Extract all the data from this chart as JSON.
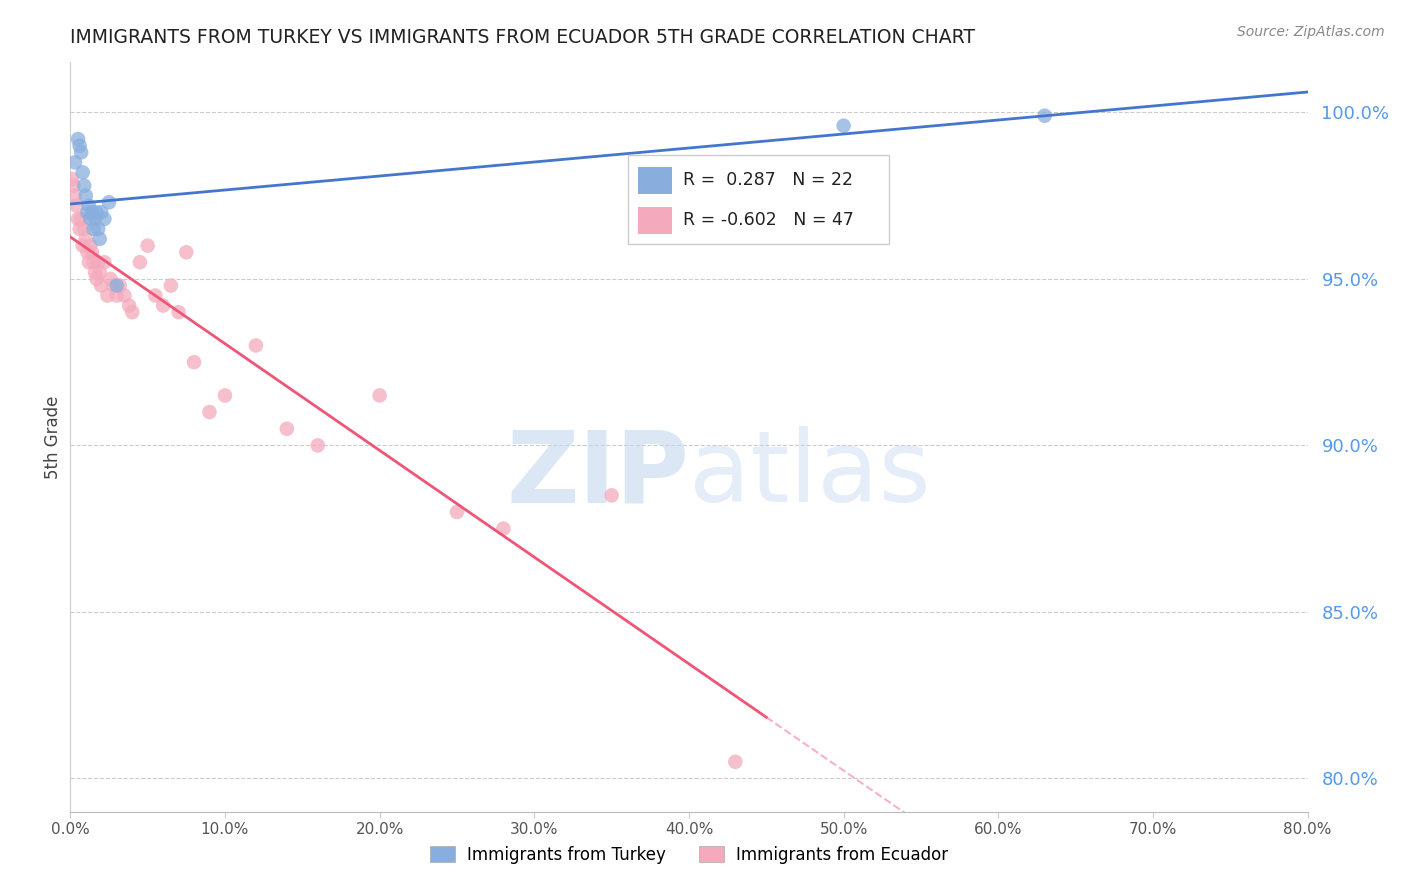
{
  "title": "IMMIGRANTS FROM TURKEY VS IMMIGRANTS FROM ECUADOR 5TH GRADE CORRELATION CHART",
  "source": "Source: ZipAtlas.com",
  "ylabel": "5th Grade",
  "turkey_R": 0.287,
  "turkey_N": 22,
  "ecuador_R": -0.602,
  "ecuador_N": 47,
  "turkey_color": "#88AEDD",
  "ecuador_color": "#F4AABC",
  "turkey_line_color": "#4477CC",
  "ecuador_line_color": "#EE5577",
  "watermark_color": "#D8E8F8",
  "right_tick_color": "#5599EE",
  "xlim": [
    0,
    80
  ],
  "ylim": [
    79,
    101.5
  ],
  "right_yticks": [
    80,
    85,
    90,
    95,
    100
  ],
  "xtick_positions": [
    0,
    10,
    20,
    30,
    40,
    50,
    60,
    70,
    80
  ],
  "xtick_labels": [
    "0.0%",
    "10.0%",
    "20.0%",
    "30.0%",
    "40.0%",
    "50.0%",
    "60.0%",
    "70.0%",
    "80.0%"
  ],
  "turkey_x": [
    0.3,
    0.5,
    0.6,
    0.7,
    0.8,
    0.9,
    1.0,
    1.1,
    1.2,
    1.3,
    1.4,
    1.5,
    1.6,
    1.7,
    1.8,
    1.9,
    2.0,
    2.2,
    2.5,
    3.0,
    50.0,
    63.0
  ],
  "turkey_y": [
    98.5,
    99.2,
    99.0,
    98.8,
    98.2,
    97.8,
    97.5,
    97.0,
    97.2,
    96.8,
    97.0,
    96.5,
    96.8,
    97.0,
    96.5,
    96.2,
    97.0,
    96.8,
    97.3,
    94.8,
    99.6,
    99.9
  ],
  "ecuador_x": [
    0.1,
    0.2,
    0.3,
    0.4,
    0.5,
    0.6,
    0.7,
    0.8,
    0.9,
    1.0,
    1.1,
    1.2,
    1.3,
    1.4,
    1.5,
    1.6,
    1.7,
    1.8,
    1.9,
    2.0,
    2.2,
    2.4,
    2.6,
    2.8,
    3.0,
    3.2,
    3.5,
    3.8,
    4.0,
    4.5,
    5.0,
    5.5,
    6.0,
    6.5,
    7.0,
    7.5,
    8.0,
    9.0,
    10.0,
    12.0,
    14.0,
    16.0,
    20.0,
    25.0,
    28.0,
    35.0,
    43.0
  ],
  "ecuador_y": [
    98.0,
    97.8,
    97.5,
    97.2,
    96.8,
    96.5,
    96.8,
    96.0,
    96.5,
    96.2,
    95.8,
    95.5,
    96.0,
    95.8,
    95.5,
    95.2,
    95.0,
    95.5,
    95.2,
    94.8,
    95.5,
    94.5,
    95.0,
    94.8,
    94.5,
    94.8,
    94.5,
    94.2,
    94.0,
    95.5,
    96.0,
    94.5,
    94.2,
    94.8,
    94.0,
    95.8,
    92.5,
    91.0,
    91.5,
    93.0,
    90.5,
    90.0,
    91.5,
    88.0,
    87.5,
    88.5,
    80.5
  ],
  "ecuador_line_solid_end": 45.0,
  "turkey_line_x_start": 0,
  "turkey_line_x_end": 80
}
